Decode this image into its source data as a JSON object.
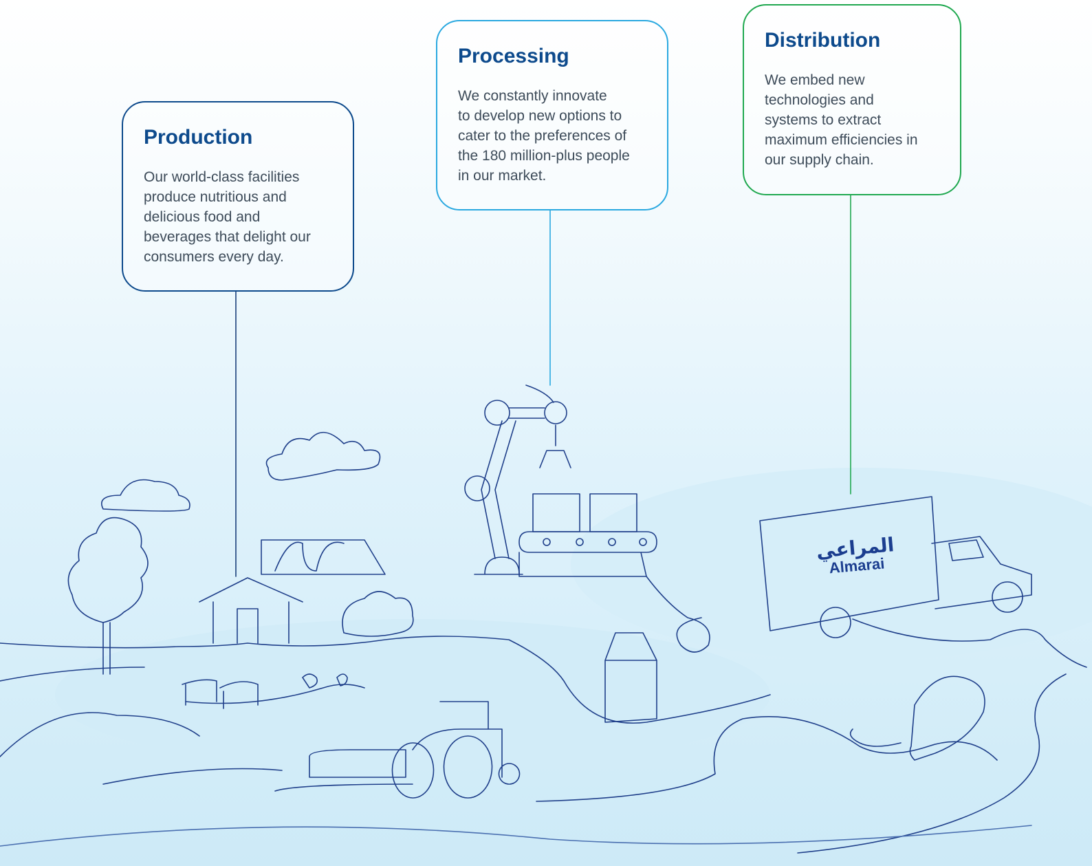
{
  "boxes": [
    {
      "title": "Production",
      "lines": [
        "Our world-class facilities",
        "produce nutritious and",
        "delicious food and",
        "beverages that delight our",
        "consumers every day."
      ]
    },
    {
      "title": "Processing",
      "lines": [
        "We constantly innovate",
        "to develop new options to",
        "cater to the preferences of",
        "the 180 million-plus people",
        "in our market."
      ]
    },
    {
      "title": "Distribution",
      "lines": [
        "We embed new",
        "technologies and",
        "systems to extract",
        "maximum efficiencies in",
        "our supply chain."
      ]
    }
  ],
  "logo": {
    "arabic": "المراعي",
    "latin": "Almarai"
  }
}
